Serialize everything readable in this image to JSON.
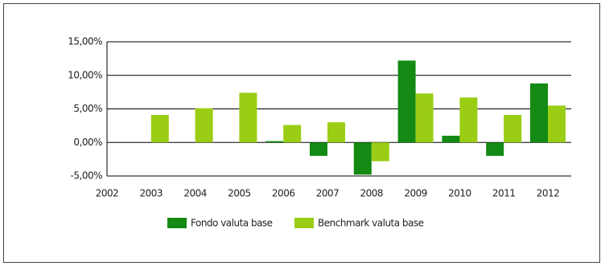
{
  "chart_data": {
    "type": "bar",
    "categories": [
      "2002",
      "2003",
      "2004",
      "2005",
      "2006",
      "2007",
      "2008",
      "2009",
      "2010",
      "2011",
      "2012"
    ],
    "series": [
      {
        "name": "Fondo valuta base",
        "color": "#138a13",
        "values": [
          null,
          null,
          null,
          null,
          0.2,
          -2.0,
          -4.8,
          12.2,
          1.0,
          -2.0,
          8.8
        ]
      },
      {
        "name": "Benchmark valuta base",
        "color": "#9acd14",
        "values": [
          null,
          4.1,
          5.1,
          7.4,
          2.6,
          3.0,
          -2.8,
          7.3,
          6.7,
          4.1,
          5.5
        ]
      }
    ],
    "ylim": [
      -5,
      15
    ],
    "yticks": [
      {
        "value": -5,
        "label": "-5,00%"
      },
      {
        "value": 0,
        "label": "0,00%"
      },
      {
        "value": 5,
        "label": "5,00%"
      },
      {
        "value": 10,
        "label": "10,00%"
      },
      {
        "value": 15,
        "label": "15,00%"
      }
    ],
    "grid": true
  }
}
